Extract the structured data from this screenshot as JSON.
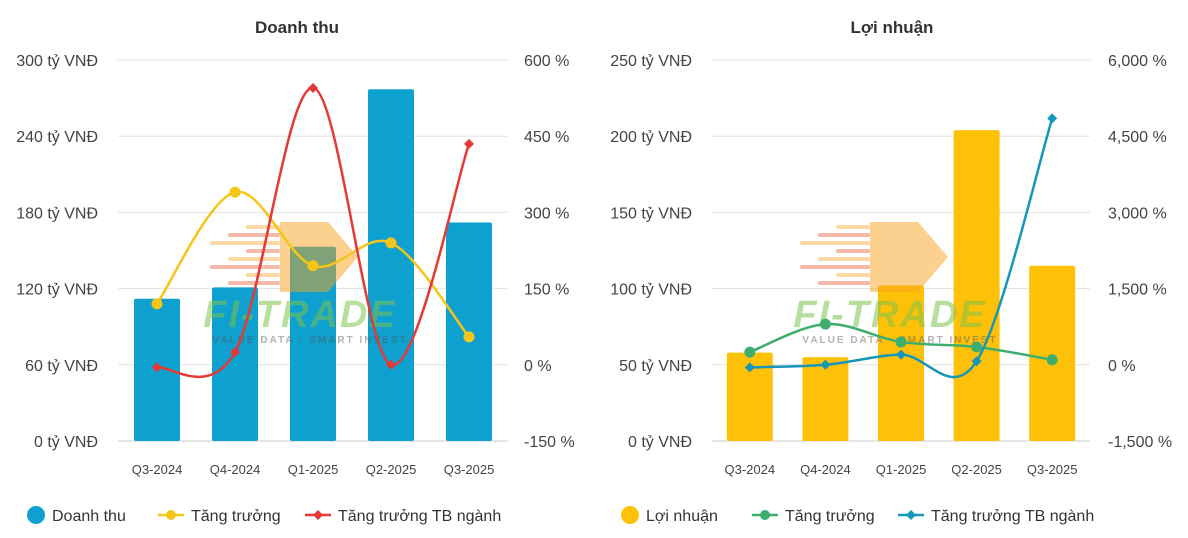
{
  "chart_data": [
    {
      "type": "bar",
      "title": "Doanh thu",
      "categories": [
        "Q3-2024",
        "Q4-2024",
        "Q1-2025",
        "Q2-2025",
        "Q3-2025"
      ],
      "y_left": {
        "ticks": [
          "0 tỷ VNĐ",
          "60 tỷ VNĐ",
          "120 tỷ VNĐ",
          "180 tỷ VNĐ",
          "240 tỷ VNĐ",
          "300 tỷ VNĐ"
        ],
        "range": [
          0,
          300
        ]
      },
      "y_right": {
        "ticks": [
          "-150 %",
          "0 %",
          "150 %",
          "300 %",
          "450 %",
          "600 %"
        ],
        "range": [
          -150,
          600
        ]
      },
      "series": [
        {
          "name": "Doanh thu",
          "kind": "bar",
          "axis": "left",
          "color": "#0ea1cf",
          "values": [
            112,
            121,
            153,
            277,
            172
          ]
        },
        {
          "name": "Tăng trưởng",
          "kind": "line",
          "axis": "right",
          "color": "#f5c518",
          "values": [
            120,
            340,
            195,
            240,
            55
          ]
        },
        {
          "name": "Tăng trưởng TB ngành",
          "kind": "line",
          "axis": "right",
          "color": "#e53935",
          "values": [
            -5,
            25,
            545,
            0,
            435
          ]
        }
      ],
      "legend_position": "bottom"
    },
    {
      "type": "bar",
      "title": "Lợi nhuận",
      "categories": [
        "Q3-2024",
        "Q4-2024",
        "Q1-2025",
        "Q2-2025",
        "Q3-2025"
      ],
      "y_left": {
        "ticks": [
          "0 tỷ VNĐ",
          "50 tỷ VNĐ",
          "100 tỷ VNĐ",
          "150 tỷ VNĐ",
          "200 tỷ VNĐ",
          "250 tỷ VNĐ"
        ],
        "range": [
          0,
          250
        ]
      },
      "y_right": {
        "ticks": [
          "-1,500 %",
          "0 %",
          "1,500 %",
          "3,000 %",
          "4,500 %",
          "6,000 %"
        ],
        "range": [
          -1500,
          6000
        ]
      },
      "series": [
        {
          "name": "Lợi nhuận",
          "kind": "bar",
          "axis": "left",
          "color": "#ffc107",
          "values": [
            58,
            55,
            102,
            204,
            115
          ]
        },
        {
          "name": "Tăng trưởng",
          "kind": "line",
          "axis": "right",
          "color": "#3dae6e",
          "values": [
            250,
            800,
            450,
            350,
            100
          ]
        },
        {
          "name": "Tăng trưởng TB ngành",
          "kind": "line",
          "axis": "right",
          "color": "#1497b8",
          "values": [
            -50,
            0,
            200,
            70,
            4850
          ]
        }
      ],
      "legend_position": "bottom"
    }
  ],
  "watermark": {
    "brand": "FI-TRADE",
    "tagline": "VALUE DATA - SMART INVEST"
  }
}
